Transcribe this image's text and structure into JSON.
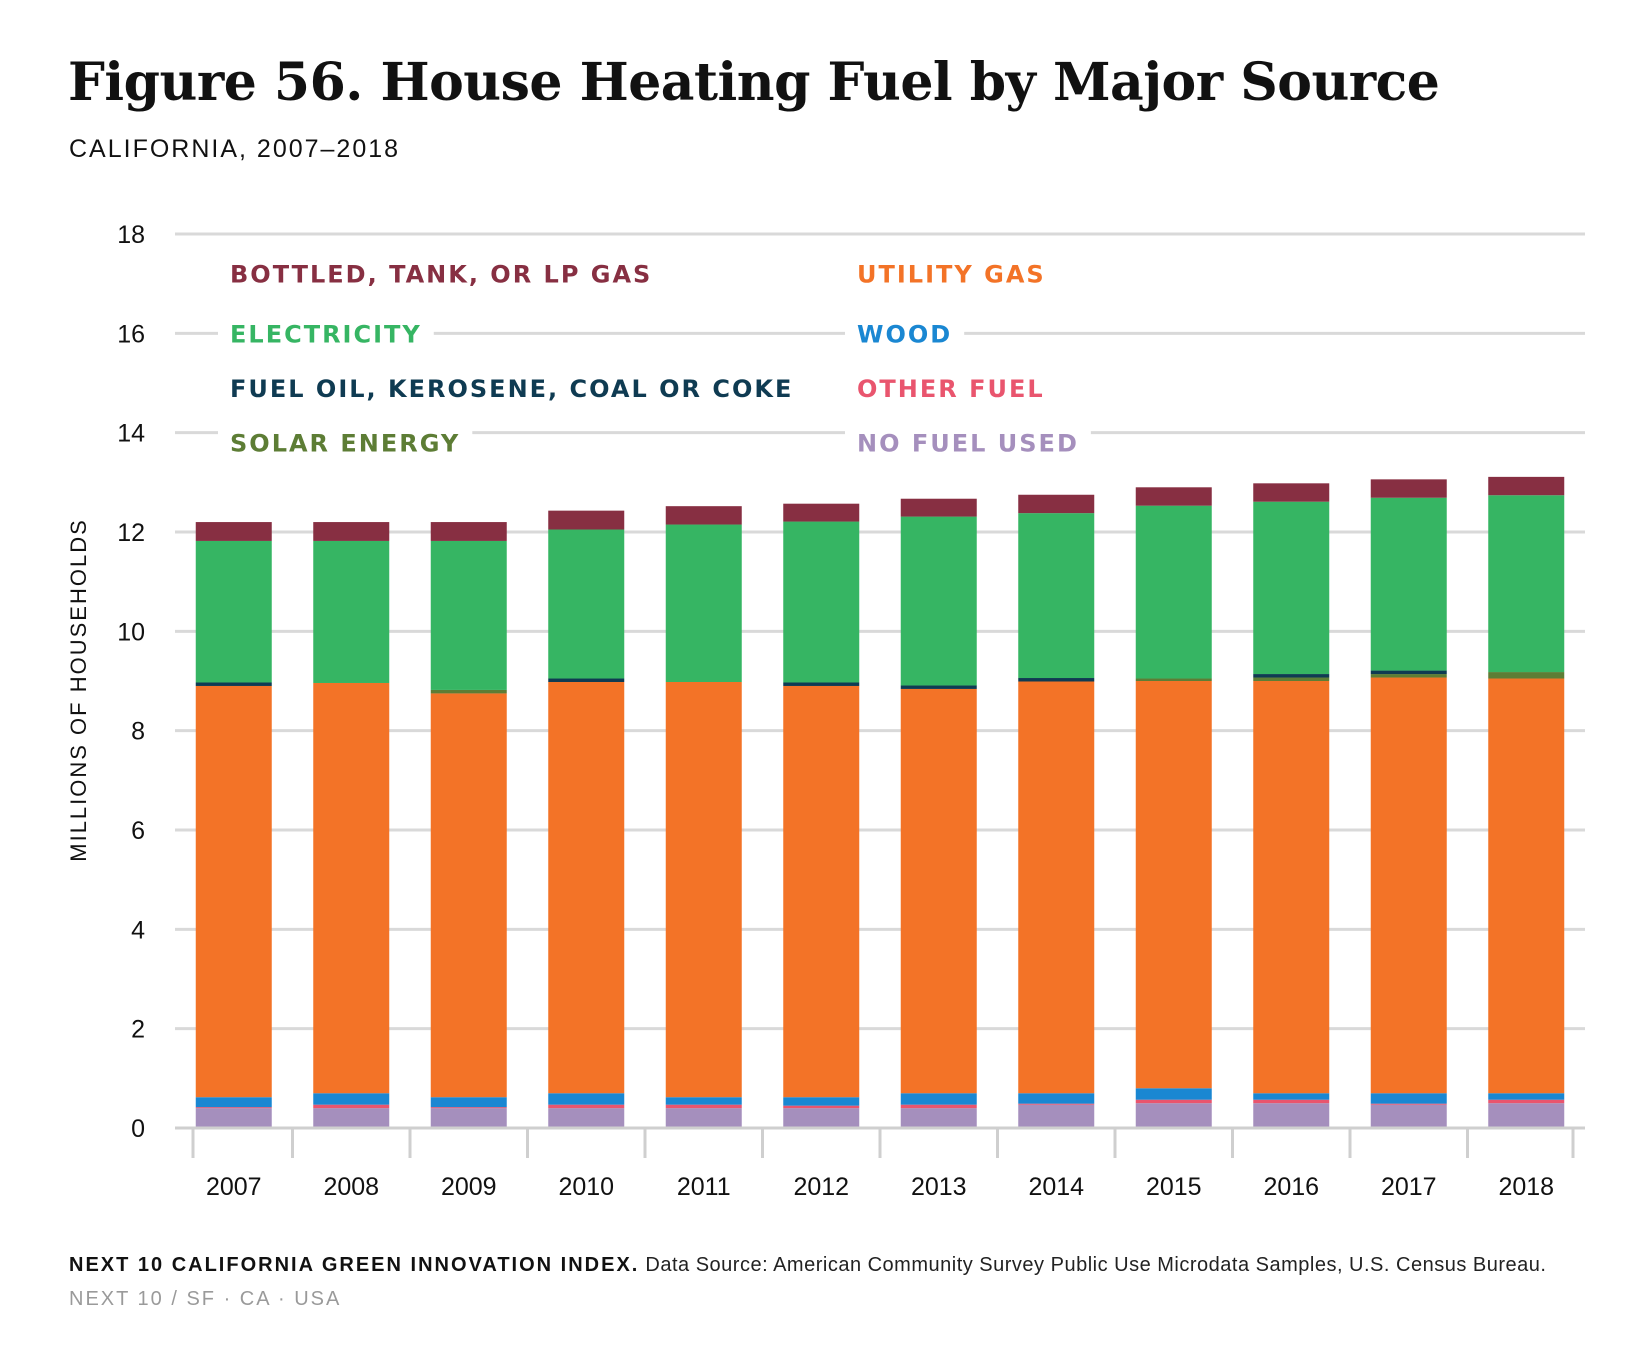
{
  "title": "Figure 56. House Heating Fuel by Major Source",
  "subtitle": "CALIFORNIA, 2007–2018",
  "footer": {
    "source_label": "NEXT 10 CALIFORNIA GREEN INNOVATION INDEX.",
    "source_text": "Data Source: American Community Survey Public Use Microdata Samples, U.S. Census Bureau.",
    "brand": "NEXT 10  /  SF · CA · USA"
  },
  "chart_data": {
    "type": "bar",
    "stacked": true,
    "title": "Figure 56. House Heating Fuel by Major Source",
    "subtitle": "CALIFORNIA, 2007–2018",
    "xlabel": "",
    "ylabel": "MILLIONS OF HOUSEHOLDS",
    "ylim": [
      0,
      18
    ],
    "yticks": [
      0,
      2,
      4,
      6,
      8,
      10,
      12,
      14,
      16,
      18
    ],
    "grid": true,
    "categories": [
      "2007",
      "2008",
      "2009",
      "2010",
      "2011",
      "2012",
      "2013",
      "2014",
      "2015",
      "2016",
      "2017",
      "2018"
    ],
    "series": [
      {
        "name": "NO FUEL USED",
        "color": "#a58fbd",
        "values": [
          0.4,
          0.4,
          0.4,
          0.4,
          0.4,
          0.4,
          0.4,
          0.47,
          0.5,
          0.5,
          0.47,
          0.5
        ]
      },
      {
        "name": "OTHER FUEL",
        "color": "#e9556e",
        "values": [
          0.02,
          0.07,
          0.02,
          0.07,
          0.07,
          0.05,
          0.07,
          0.02,
          0.07,
          0.07,
          0.02,
          0.07
        ]
      },
      {
        "name": "WOOD",
        "color": "#1a87d2",
        "values": [
          0.2,
          0.23,
          0.2,
          0.23,
          0.15,
          0.17,
          0.23,
          0.21,
          0.23,
          0.13,
          0.21,
          0.13
        ]
      },
      {
        "name": "UTILITY GAS",
        "color": "#f37327",
        "values": [
          8.28,
          8.26,
          8.13,
          8.28,
          8.36,
          8.28,
          8.14,
          8.29,
          8.2,
          8.3,
          8.37,
          8.35
        ]
      },
      {
        "name": "SOLAR ENERGY",
        "color": "#5d7d35",
        "values": [
          0.0,
          0.0,
          0.07,
          0.0,
          0.0,
          0.0,
          0.0,
          0.0,
          0.05,
          0.07,
          0.07,
          0.13
        ]
      },
      {
        "name": "FUEL OIL, KEROSENE, COAL OR COKE",
        "color": "#0f3b52",
        "values": [
          0.07,
          0.0,
          0.0,
          0.07,
          0.0,
          0.07,
          0.07,
          0.07,
          0.0,
          0.07,
          0.07,
          0.0
        ]
      },
      {
        "name": "ELECTRICITY",
        "color": "#36b563",
        "values": [
          2.85,
          2.86,
          3.0,
          3.0,
          3.17,
          3.24,
          3.4,
          3.32,
          3.48,
          3.47,
          3.48,
          3.56
        ]
      },
      {
        "name": "BOTTLED, TANK, OR LP GAS",
        "color": "#872f42",
        "values": [
          0.38,
          0.38,
          0.38,
          0.38,
          0.37,
          0.36,
          0.36,
          0.37,
          0.37,
          0.37,
          0.37,
          0.37
        ]
      }
    ],
    "legend": {
      "position": "top-left, inside plot, two columns",
      "left_column": [
        "BOTTLED, TANK, OR LP GAS",
        "ELECTRICITY",
        "FUEL OIL, KEROSENE, COAL OR COKE",
        "SOLAR ENERGY"
      ],
      "right_column": [
        "UTILITY GAS",
        "WOOD",
        "OTHER FUEL",
        "NO FUEL USED"
      ]
    }
  }
}
